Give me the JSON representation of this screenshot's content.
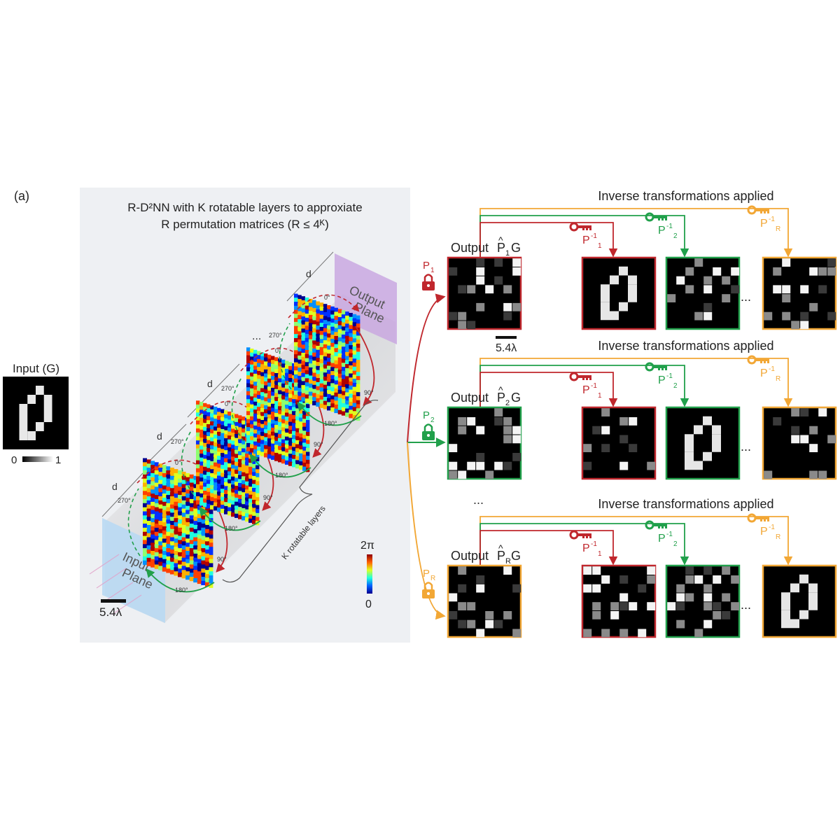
{
  "panel_label": "(a)",
  "input": {
    "title": "Input (G)",
    "scale_min": "0",
    "scale_max": "1",
    "digit": [
      [
        0,
        0,
        0,
        0,
        0,
        0,
        0,
        0
      ],
      [
        0,
        0,
        0,
        0,
        1,
        0,
        0,
        0
      ],
      [
        0,
        0,
        0,
        1,
        0,
        1,
        0,
        0
      ],
      [
        0,
        0,
        1,
        0,
        0,
        1,
        0,
        0
      ],
      [
        0,
        0,
        1,
        0,
        0,
        1,
        0,
        0
      ],
      [
        0,
        0,
        1,
        0,
        1,
        0,
        0,
        0
      ],
      [
        0,
        0,
        1,
        1,
        0,
        0,
        0,
        0
      ],
      [
        0,
        0,
        0,
        0,
        0,
        0,
        0,
        0
      ]
    ]
  },
  "network": {
    "title_line1": "R-D²NN with K rotatable layers to approxiate",
    "title_line2": "R permutation matrices (R ≤ 4ᴷ)",
    "output_plane": [
      "Output",
      "Plane"
    ],
    "input_plane": [
      "Input",
      "Plane"
    ],
    "distance_label": "d",
    "angles": [
      "0°",
      "90°",
      "180°",
      "270°"
    ],
    "layers_label": "K rotatable layers",
    "scale_bar": "5.4λ",
    "ellipsis": "...",
    "colorbar_max": "2π",
    "colorbar_min": "0"
  },
  "rows": [
    {
      "header": "Inverse transformations applied",
      "output_label": "Output",
      "output_sub": "1",
      "lock_label": "P",
      "lock_sub": "1",
      "color": "#c0272d",
      "scale_bar": "5.4λ",
      "decoded_index": 0
    },
    {
      "header": "Inverse transformations applied",
      "output_label": "Output",
      "output_sub": "2",
      "lock_label": "P",
      "lock_sub": "2",
      "color": "#21a04b",
      "decoded_index": 1
    },
    {
      "header": "Inverse transformations applied",
      "output_label": "Output",
      "output_sub": "R",
      "lock_label": "P",
      "lock_sub": "R",
      "color": "#f2a735",
      "decoded_index": 3
    }
  ],
  "keys": [
    {
      "label": "P",
      "sup": "-1",
      "sub": "1",
      "color": "#c0272d"
    },
    {
      "label": "P",
      "sup": "-1",
      "sub": "2",
      "color": "#21a04b"
    },
    {
      "label": "P",
      "sup": "-1",
      "sub": "R",
      "color": "#f2a735"
    }
  ],
  "dots": "...",
  "colors": {
    "red": "#c0272d",
    "green": "#21a04b",
    "orange": "#f2a735",
    "panel_bg": "#eef0f3",
    "plane_purple": "#c9a8e0",
    "plane_blue": "#b9d9f3"
  }
}
